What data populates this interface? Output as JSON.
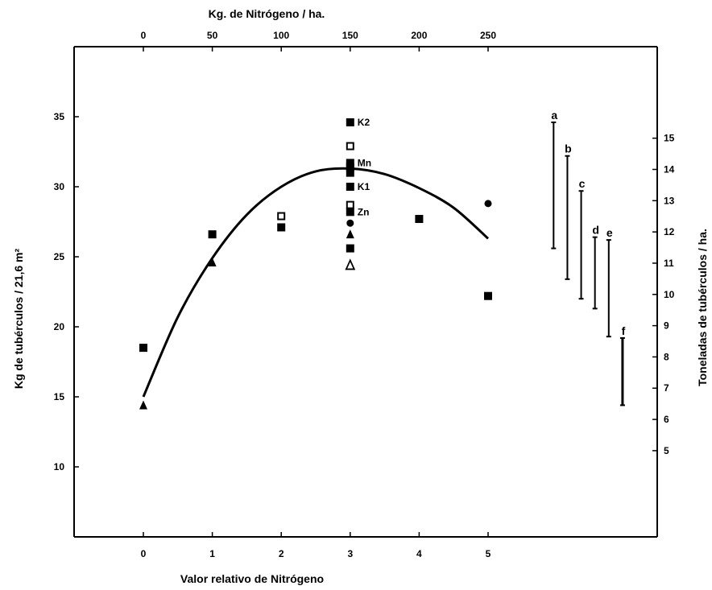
{
  "chart_data": {
    "type": "scatter",
    "top_xlabel": "Kg. de Nitrógeno / ha.",
    "xlabel": "Valor relativo de Nitrógeno",
    "ylabel_left": "Kg de tubérculos / 21,6 m²",
    "ylabel_right": "Toneladas de tubérculos / ha.",
    "xlim": [
      -1.0,
      7.1
    ],
    "ylim_left": [
      5,
      40
    ],
    "x_ticks": [
      "0",
      "1",
      "2",
      "3",
      "4",
      "5"
    ],
    "top_ticks": [
      "0",
      "50",
      "100",
      "150",
      "200",
      "250"
    ],
    "y_ticks_left": [
      "10",
      "15",
      "20",
      "25",
      "30",
      "35"
    ],
    "y_ticks_right": [
      "5",
      "6",
      "7",
      "8",
      "9",
      "10",
      "11",
      "12",
      "13",
      "14",
      "15"
    ],
    "grid": false,
    "points": [
      {
        "x": 0,
        "y": 18.5,
        "marker": "filled-square"
      },
      {
        "x": 0,
        "y": 14.4,
        "marker": "filled-triangle"
      },
      {
        "x": 1,
        "y": 26.6,
        "marker": "filled-square"
      },
      {
        "x": 1,
        "y": 24.6,
        "marker": "filled-triangle"
      },
      {
        "x": 2,
        "y": 27.9,
        "marker": "open-square"
      },
      {
        "x": 2,
        "y": 27.1,
        "marker": "filled-square"
      },
      {
        "x": 3,
        "y": 34.6,
        "marker": "filled-square",
        "label": "K2"
      },
      {
        "x": 3,
        "y": 32.9,
        "marker": "open-square"
      },
      {
        "x": 3,
        "y": 31.7,
        "marker": "filled-square",
        "label": "Mn"
      },
      {
        "x": 3,
        "y": 31.4,
        "marker": "filled-square"
      },
      {
        "x": 3,
        "y": 31.0,
        "marker": "filled-square"
      },
      {
        "x": 3,
        "y": 30.0,
        "marker": "filled-square",
        "label": "K1"
      },
      {
        "x": 3,
        "y": 28.7,
        "marker": "open-square"
      },
      {
        "x": 3,
        "y": 28.2,
        "marker": "filled-square",
        "label": "Zn"
      },
      {
        "x": 3,
        "y": 27.4,
        "marker": "filled-circle"
      },
      {
        "x": 3,
        "y": 26.6,
        "marker": "filled-triangle"
      },
      {
        "x": 3,
        "y": 25.6,
        "marker": "filled-square"
      },
      {
        "x": 3,
        "y": 24.4,
        "marker": "open-triangle"
      },
      {
        "x": 4,
        "y": 27.7,
        "marker": "filled-square"
      },
      {
        "x": 5,
        "y": 28.8,
        "marker": "filled-circle"
      },
      {
        "x": 5,
        "y": 22.2,
        "marker": "filled-square"
      }
    ],
    "fit_curve": {
      "x": [
        0,
        0.5,
        1,
        1.5,
        2,
        2.5,
        3,
        3.5,
        4,
        4.5,
        5
      ],
      "y": [
        15.0,
        20.7,
        24.9,
        28.0,
        30.0,
        31.1,
        31.3,
        30.9,
        29.9,
        28.5,
        26.3
      ]
    },
    "error_bars": [
      {
        "label": "a",
        "x": 5.95,
        "low": 25.6,
        "high": 34.6
      },
      {
        "label": "b",
        "x": 6.15,
        "low": 23.4,
        "high": 32.2
      },
      {
        "label": "c",
        "x": 6.35,
        "low": 22.0,
        "high": 29.7
      },
      {
        "label": "d",
        "x": 6.55,
        "low": 21.3,
        "high": 26.4
      },
      {
        "label": "e",
        "x": 6.75,
        "low": 19.3,
        "high": 26.2
      },
      {
        "label": "f",
        "x": 6.95,
        "low": 14.4,
        "high": 19.2
      }
    ]
  }
}
